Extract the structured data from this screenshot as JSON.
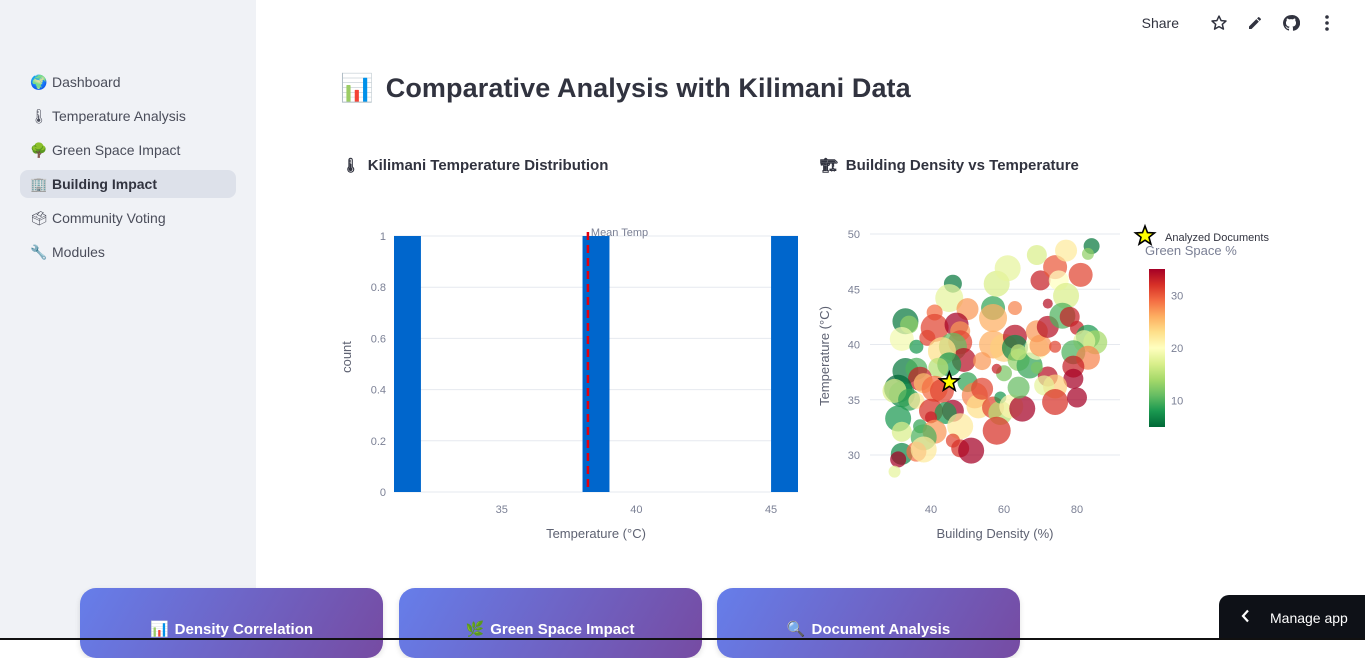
{
  "sidebar": {
    "items": [
      {
        "icon": "🌍",
        "icon_name": "globe-icon",
        "label": "Dashboard",
        "active": false
      },
      {
        "icon": "🌡",
        "icon_name": "thermometer-icon",
        "label": "Temperature Analysis",
        "active": false
      },
      {
        "icon": "🌳",
        "icon_name": "tree-icon",
        "label": "Green Space Impact",
        "active": false
      },
      {
        "icon": "🏢",
        "icon_name": "building-icon",
        "label": "Building Impact",
        "active": true
      },
      {
        "icon": "🗳",
        "icon_name": "ballot-box-icon",
        "label": "Community Voting",
        "active": false
      },
      {
        "icon": "🔧",
        "icon_name": "wrench-icon",
        "label": "Modules",
        "active": false
      }
    ]
  },
  "toolbar": {
    "share_label": "Share",
    "icons": [
      "star-icon",
      "pencil-icon",
      "github-icon",
      "more-vertical-icon"
    ]
  },
  "page": {
    "title_icon": "📊",
    "title": "Comparative Analysis with Kilimani Data",
    "left_chart_icon": "🌡",
    "left_chart_title": "Kilimani Temperature Distribution",
    "right_chart_icon": "🏗",
    "right_chart_title": "Building Density vs Temperature"
  },
  "cards": [
    {
      "icon": "📊",
      "title": "Density Correlation"
    },
    {
      "icon": "🌿",
      "title": "Green Space Impact"
    },
    {
      "icon": "🔍",
      "title": "Document Analysis"
    }
  ],
  "manage_app": {
    "label": "Manage app"
  },
  "colors": {
    "bar": "#0066cc",
    "mean_line": "#e3000f",
    "star": "#ffff00",
    "card_gradient_start": "#667eea",
    "card_gradient_end": "#764ba2",
    "colorscale": [
      "#006837",
      "#1a9850",
      "#66bd63",
      "#a6d96a",
      "#d9ef8b",
      "#ffffbf",
      "#fee08b",
      "#fdae61",
      "#f46d43",
      "#d73027",
      "#a50026"
    ]
  },
  "chart_data": [
    {
      "type": "bar",
      "title": "Kilimani Temperature Distribution",
      "xlabel": "Temperature (°C)",
      "ylabel": "count",
      "bins": [
        {
          "x0": 31,
          "x1": 32,
          "count": 1
        },
        {
          "x0": 38,
          "x1": 39,
          "count": 1
        },
        {
          "x0": 45,
          "x1": 46,
          "count": 1
        }
      ],
      "xlim": [
        31,
        46
      ],
      "ylim": [
        0,
        1
      ],
      "x_ticks": [
        35,
        40,
        45
      ],
      "y_ticks": [
        0,
        0.2,
        0.4,
        0.6,
        0.8,
        1
      ],
      "y_tick_labels": [
        "0",
        "0.2",
        "0.4",
        "0.6",
        "0.8",
        "1"
      ],
      "mean_line": {
        "x": 38.2,
        "label": "Mean Temp"
      },
      "grid": true
    },
    {
      "type": "scatter",
      "title": "Building Density vs Temperature",
      "xlabel": "Building Density (%)",
      "ylabel": "Temperature (°C)",
      "xlim": [
        25,
        90
      ],
      "ylim": [
        26.5,
        51
      ],
      "x_ticks": [
        40,
        60,
        80
      ],
      "y_ticks": [
        30,
        35,
        40,
        45,
        50
      ],
      "colorbar": {
        "title": "Green Space %",
        "range": [
          5,
          35
        ],
        "ticks": [
          10,
          20,
          30
        ]
      },
      "legend": {
        "entries": [
          "Analyzed Documents"
        ],
        "position": "top-right"
      },
      "highlight": {
        "name": "Analyzed Documents",
        "x": 45,
        "y": 36.6,
        "marker": "star"
      },
      "points": [
        {
          "x": 33,
          "y": 42.1,
          "g": 6,
          "s": 13
        },
        {
          "x": 34,
          "y": 41.8,
          "g": 13,
          "s": 9
        },
        {
          "x": 32,
          "y": 40.5,
          "g": 19,
          "s": 12
        },
        {
          "x": 36,
          "y": 39.8,
          "g": 8,
          "s": 7
        },
        {
          "x": 46,
          "y": 45.5,
          "g": 6,
          "s": 9
        },
        {
          "x": 45,
          "y": 44.2,
          "g": 18,
          "s": 14
        },
        {
          "x": 50,
          "y": 43.2,
          "g": 27,
          "s": 11
        },
        {
          "x": 41,
          "y": 42.9,
          "g": 29,
          "s": 8
        },
        {
          "x": 41,
          "y": 41.5,
          "g": 31,
          "s": 14
        },
        {
          "x": 47,
          "y": 41.8,
          "g": 35,
          "s": 12
        },
        {
          "x": 48,
          "y": 41.2,
          "g": 27,
          "s": 10
        },
        {
          "x": 39,
          "y": 40.6,
          "g": 31,
          "s": 8
        },
        {
          "x": 48,
          "y": 40.2,
          "g": 31,
          "s": 12
        },
        {
          "x": 46,
          "y": 39.8,
          "g": 11,
          "s": 14
        },
        {
          "x": 49,
          "y": 38.6,
          "g": 34,
          "s": 12
        },
        {
          "x": 43,
          "y": 39.4,
          "g": 23,
          "s": 14
        },
        {
          "x": 45,
          "y": 38.2,
          "g": 8,
          "s": 12
        },
        {
          "x": 42,
          "y": 37.9,
          "g": 15,
          "s": 10
        },
        {
          "x": 33,
          "y": 37.6,
          "g": 6,
          "s": 13
        },
        {
          "x": 36,
          "y": 37.8,
          "g": 10,
          "s": 11
        },
        {
          "x": 37,
          "y": 36.9,
          "g": 33,
          "s": 12
        },
        {
          "x": 38,
          "y": 36.5,
          "g": 25,
          "s": 10
        },
        {
          "x": 31,
          "y": 36.0,
          "g": 5,
          "s": 14
        },
        {
          "x": 32,
          "y": 35.5,
          "g": 7,
          "s": 13
        },
        {
          "x": 30,
          "y": 35.8,
          "g": 17,
          "s": 12
        },
        {
          "x": 34,
          "y": 35.0,
          "g": 9,
          "s": 11
        },
        {
          "x": 36,
          "y": 34.9,
          "g": 22,
          "s": 8
        },
        {
          "x": 41,
          "y": 36.0,
          "g": 29,
          "s": 13
        },
        {
          "x": 43,
          "y": 35.8,
          "g": 31,
          "s": 12
        },
        {
          "x": 40,
          "y": 34.0,
          "g": 32,
          "s": 12
        },
        {
          "x": 46,
          "y": 34.0,
          "g": 35,
          "s": 11
        },
        {
          "x": 44,
          "y": 33.8,
          "g": 8,
          "s": 11
        },
        {
          "x": 48,
          "y": 32.6,
          "g": 22,
          "s": 13
        },
        {
          "x": 37,
          "y": 32.6,
          "g": 9,
          "s": 7
        },
        {
          "x": 40,
          "y": 33.4,
          "g": 33,
          "s": 6
        },
        {
          "x": 41,
          "y": 32.1,
          "g": 27,
          "s": 12
        },
        {
          "x": 38,
          "y": 31.6,
          "g": 10,
          "s": 13
        },
        {
          "x": 31,
          "y": 33.3,
          "g": 8,
          "s": 13
        },
        {
          "x": 32,
          "y": 32.1,
          "g": 17,
          "s": 10
        },
        {
          "x": 32,
          "y": 30.1,
          "g": 7,
          "s": 11
        },
        {
          "x": 31,
          "y": 29.6,
          "g": 35,
          "s": 8
        },
        {
          "x": 36,
          "y": 30.3,
          "g": 29,
          "s": 10
        },
        {
          "x": 38,
          "y": 30.5,
          "g": 22,
          "s": 13
        },
        {
          "x": 46,
          "y": 31.3,
          "g": 31,
          "s": 7
        },
        {
          "x": 48,
          "y": 30.6,
          "g": 32,
          "s": 9
        },
        {
          "x": 51,
          "y": 30.4,
          "g": 35,
          "s": 13
        },
        {
          "x": 30,
          "y": 28.5,
          "g": 18,
          "s": 6
        },
        {
          "x": 50,
          "y": 36.6,
          "g": 9,
          "s": 10
        },
        {
          "x": 52,
          "y": 35.4,
          "g": 28,
          "s": 13
        },
        {
          "x": 53,
          "y": 34.4,
          "g": 23,
          "s": 12
        },
        {
          "x": 54,
          "y": 36.0,
          "g": 31,
          "s": 11
        },
        {
          "x": 57,
          "y": 34.3,
          "g": 31,
          "s": 11
        },
        {
          "x": 59,
          "y": 33.8,
          "g": 15,
          "s": 12
        },
        {
          "x": 59,
          "y": 35.2,
          "g": 8,
          "s": 6
        },
        {
          "x": 58,
          "y": 32.2,
          "g": 32,
          "s": 14
        },
        {
          "x": 62,
          "y": 34.4,
          "g": 21,
          "s": 12
        },
        {
          "x": 65,
          "y": 34.2,
          "g": 35,
          "s": 13
        },
        {
          "x": 64,
          "y": 36.1,
          "g": 11,
          "s": 11
        },
        {
          "x": 60,
          "y": 37.4,
          "g": 12,
          "s": 8
        },
        {
          "x": 58,
          "y": 37.8,
          "g": 33,
          "s": 5
        },
        {
          "x": 57,
          "y": 40.0,
          "g": 26,
          "s": 14
        },
        {
          "x": 60,
          "y": 39.7,
          "g": 24,
          "s": 14
        },
        {
          "x": 63,
          "y": 40.7,
          "g": 34,
          "s": 12
        },
        {
          "x": 63,
          "y": 39.7,
          "g": 7,
          "s": 13
        },
        {
          "x": 64,
          "y": 38.6,
          "g": 13,
          "s": 11
        },
        {
          "x": 67,
          "y": 38.1,
          "g": 9,
          "s": 13
        },
        {
          "x": 69,
          "y": 39.7,
          "g": 20,
          "s": 12
        },
        {
          "x": 70,
          "y": 39.9,
          "g": 27,
          "s": 11
        },
        {
          "x": 69,
          "y": 41.2,
          "g": 27,
          "s": 11
        },
        {
          "x": 72,
          "y": 41.6,
          "g": 34,
          "s": 11
        },
        {
          "x": 72,
          "y": 43.7,
          "g": 34,
          "s": 5
        },
        {
          "x": 63,
          "y": 43.3,
          "g": 28,
          "s": 7
        },
        {
          "x": 57,
          "y": 43.3,
          "g": 9,
          "s": 12
        },
        {
          "x": 57,
          "y": 42.4,
          "g": 26,
          "s": 14
        },
        {
          "x": 58,
          "y": 45.5,
          "g": 17,
          "s": 13
        },
        {
          "x": 61,
          "y": 46.9,
          "g": 18,
          "s": 13
        },
        {
          "x": 69,
          "y": 48.1,
          "g": 17,
          "s": 10
        },
        {
          "x": 70,
          "y": 45.8,
          "g": 33,
          "s": 10
        },
        {
          "x": 74,
          "y": 47.0,
          "g": 30,
          "s": 12
        },
        {
          "x": 77,
          "y": 48.5,
          "g": 22,
          "s": 11
        },
        {
          "x": 81,
          "y": 46.3,
          "g": 31,
          "s": 12
        },
        {
          "x": 84,
          "y": 48.9,
          "g": 6,
          "s": 8
        },
        {
          "x": 83,
          "y": 48.2,
          "g": 13,
          "s": 6
        },
        {
          "x": 75,
          "y": 45.8,
          "g": 20,
          "s": 10
        },
        {
          "x": 77,
          "y": 44.4,
          "g": 17,
          "s": 13
        },
        {
          "x": 76,
          "y": 42.6,
          "g": 10,
          "s": 13
        },
        {
          "x": 78,
          "y": 42.5,
          "g": 33,
          "s": 10
        },
        {
          "x": 80,
          "y": 41.5,
          "g": 33,
          "s": 7
        },
        {
          "x": 83,
          "y": 40.7,
          "g": 8,
          "s": 12
        },
        {
          "x": 85,
          "y": 40.2,
          "g": 14,
          "s": 12
        },
        {
          "x": 82,
          "y": 40.3,
          "g": 18,
          "s": 11
        },
        {
          "x": 79,
          "y": 39.3,
          "g": 10,
          "s": 12
        },
        {
          "x": 83,
          "y": 38.8,
          "g": 28,
          "s": 12
        },
        {
          "x": 79,
          "y": 38.0,
          "g": 33,
          "s": 11
        },
        {
          "x": 79,
          "y": 36.9,
          "g": 35,
          "s": 10
        },
        {
          "x": 74,
          "y": 39.8,
          "g": 31,
          "s": 6
        },
        {
          "x": 72,
          "y": 37.1,
          "g": 34,
          "s": 10
        },
        {
          "x": 74,
          "y": 36.2,
          "g": 24,
          "s": 12
        },
        {
          "x": 71,
          "y": 36.3,
          "g": 18,
          "s": 10
        },
        {
          "x": 74,
          "y": 34.8,
          "g": 32,
          "s": 13
        },
        {
          "x": 80,
          "y": 35.2,
          "g": 35,
          "s": 10
        },
        {
          "x": 69,
          "y": 37.9,
          "g": 12,
          "s": 6
        },
        {
          "x": 64,
          "y": 39.3,
          "g": 16,
          "s": 8
        },
        {
          "x": 54,
          "y": 38.5,
          "g": 27,
          "s": 9
        }
      ]
    }
  ]
}
